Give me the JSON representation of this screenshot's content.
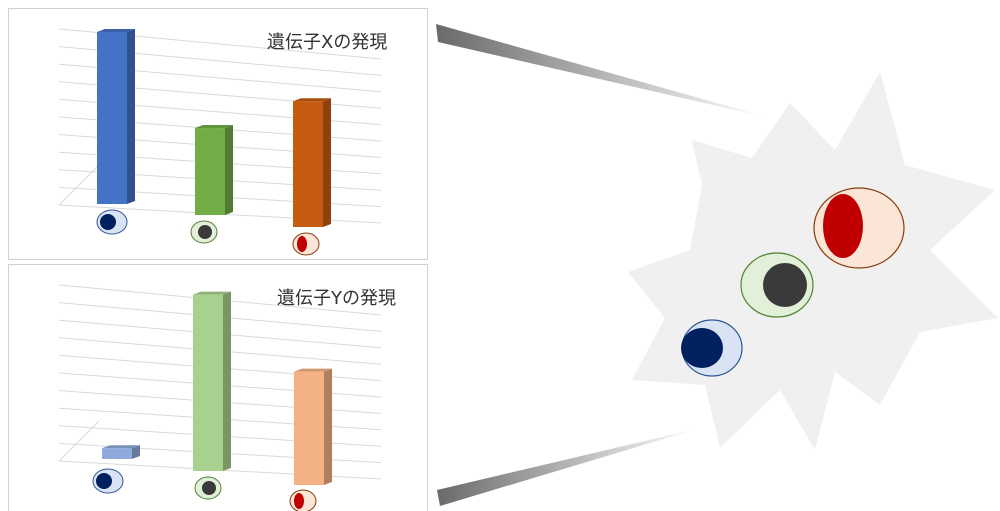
{
  "colors": {
    "blue": "#4472C4",
    "green": "#70AD47",
    "orange": "#C55A11",
    "light_blue": "#8FAADC",
    "light_green": "#A9D18E",
    "light_orange": "#F4B183",
    "cell_blue_nucleus": "#002060",
    "cell_green_nucleus": "#3A3A3A",
    "cell_red_nucleus": "#C00000"
  },
  "chart_data": [
    {
      "type": "bar",
      "title": "遺伝子Xの発現",
      "categories": [
        "blue-cell",
        "green-cell",
        "red-cell"
      ],
      "values": [
        9.3,
        4.7,
        6.8
      ],
      "ylim": [
        0,
        10
      ],
      "grid": true,
      "category_icons": [
        "blue-cell-icon",
        "green-cell-icon",
        "red-cell-icon"
      ]
    },
    {
      "type": "bar",
      "title": "遺伝子Yの発現",
      "categories": [
        "blue-cell",
        "green-cell",
        "red-cell"
      ],
      "values": [
        0.6,
        9.8,
        6.3
      ],
      "ylim": [
        0,
        10
      ],
      "grid": true,
      "category_icons": [
        "blue-cell-icon",
        "green-cell-icon",
        "red-cell-icon"
      ]
    }
  ],
  "illustration": {
    "cells": [
      "blue-cell-icon",
      "green-cell-icon",
      "red-cell-icon"
    ],
    "background_shape": "burst-shape"
  }
}
